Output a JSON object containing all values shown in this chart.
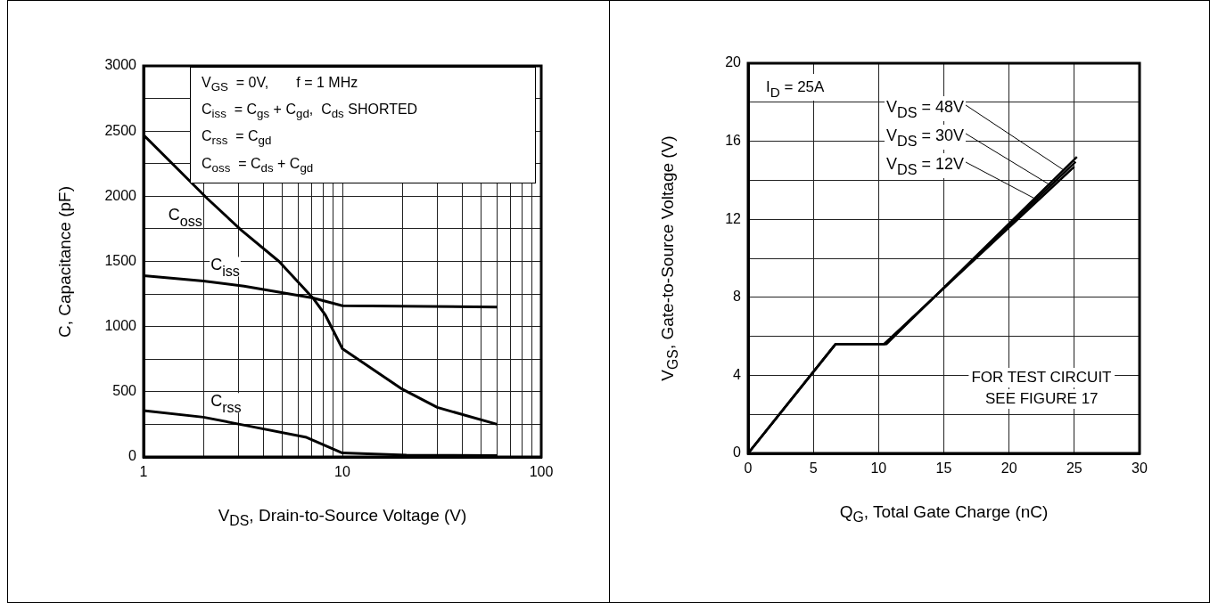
{
  "chart_data": [
    {
      "type": "line",
      "xlabel": "V$_{DS}$, Drain-to-Source Voltage (V)",
      "ylabel": "C, Capacitance (pF)",
      "log": "x",
      "grid": true,
      "legend": false,
      "marker": "none",
      "xlim": [
        1,
        100
      ],
      "xticks": [
        1,
        {
          "value": 2,
          "label": null
        },
        {
          "value": 3,
          "label": null
        },
        {
          "value": 4,
          "label": null
        },
        {
          "value": 5,
          "label": null
        },
        {
          "value": 6,
          "label": null
        },
        {
          "value": 7,
          "label": null
        },
        {
          "value": 8,
          "label": null
        },
        {
          "value": 9,
          "label": null
        },
        10,
        {
          "value": 20,
          "label": null
        },
        {
          "value": 30,
          "label": null
        },
        {
          "value": 40,
          "label": null
        },
        {
          "value": 50,
          "label": null
        },
        {
          "value": 60,
          "label": null
        },
        {
          "value": 70,
          "label": null
        },
        {
          "value": 80,
          "label": null
        },
        {
          "value": 90,
          "label": null
        },
        100
      ],
      "ylim": [
        0,
        3000
      ],
      "yticks": [
        0,
        {
          "value": 250,
          "label": null
        },
        500,
        {
          "value": 750,
          "label": null
        },
        1000,
        {
          "value": 1250,
          "label": null
        },
        1500,
        {
          "value": 1750,
          "label": null
        },
        2000,
        {
          "value": 2250,
          "label": null
        },
        2500,
        {
          "value": 2750,
          "label": null
        },
        3000
      ],
      "annotations": [
        "V$_{GS}$  = 0V,       f = 1 MHz",
        "C$_{iss}$  = C$_{gs}$ + C$_{gd}$,  C$_{ds}$ SHORTED",
        "C$_{rss}$  = C$_{gd}$",
        "C$_{oss}$  = C$_{ds}$ + C$_{gd}$"
      ],
      "series": [
        {
          "name": "C$_{oss}$",
          "color": "#000000",
          "x": [
            1,
            2.1,
            3.1,
            4.8,
            7.1,
            8.2,
            10,
            20,
            30,
            60
          ],
          "values": [
            2470,
            1980,
            1740,
            1500,
            1220,
            1090,
            830,
            520,
            380,
            250
          ]
        },
        {
          "name": "C$_{iss}$",
          "color": "#000000",
          "x": [
            1,
            2,
            3.2,
            7.1,
            10,
            60
          ],
          "values": [
            1390,
            1350,
            1310,
            1220,
            1160,
            1150
          ]
        },
        {
          "name": "C$_{rss}$",
          "color": "#000000",
          "x": [
            1,
            2,
            3.3,
            6.6,
            10,
            21,
            60
          ],
          "values": [
            355,
            305,
            240,
            150,
            30,
            14,
            10
          ]
        }
      ]
    },
    {
      "type": "line",
      "xlabel": "Q$_{G}$, Total Gate Charge (nC)",
      "ylabel": "V$_{GS}$, Gate-to-Source Voltage (V)",
      "grid": true,
      "legend": false,
      "marker": "none",
      "xlim": [
        0,
        30
      ],
      "xticks": [
        0,
        5,
        10,
        15,
        20,
        25,
        30
      ],
      "ylim": [
        0,
        20
      ],
      "yticks": [
        0,
        {
          "value": 2,
          "label": null
        },
        4,
        {
          "value": 6,
          "label": null
        },
        8,
        {
          "value": 10,
          "label": null
        },
        12,
        {
          "value": 14,
          "label": null
        },
        16,
        {
          "value": 18,
          "label": null
        },
        20
      ],
      "annotations": [
        "I$_{D}$ = 25A",
        "FOR TEST CIRCUIT",
        "SEE FIGURE 17"
      ],
      "series": [
        {
          "name": "V$_{DS}$ = 48V",
          "color": "#000000",
          "x": [
            0,
            6.7,
            10.6,
            25.2
          ],
          "values": [
            0,
            5.6,
            5.6,
            15.2
          ]
        },
        {
          "name": "V$_{DS}$ = 30V",
          "color": "#000000",
          "x": [
            0,
            6.7,
            10.5,
            25.1
          ],
          "values": [
            0,
            5.6,
            5.6,
            14.95
          ]
        },
        {
          "name": "V$_{DS}$ = 12V",
          "color": "#000000",
          "x": [
            0,
            6.7,
            10.4,
            25
          ],
          "values": [
            0,
            5.6,
            5.6,
            14.7
          ]
        }
      ]
    }
  ]
}
